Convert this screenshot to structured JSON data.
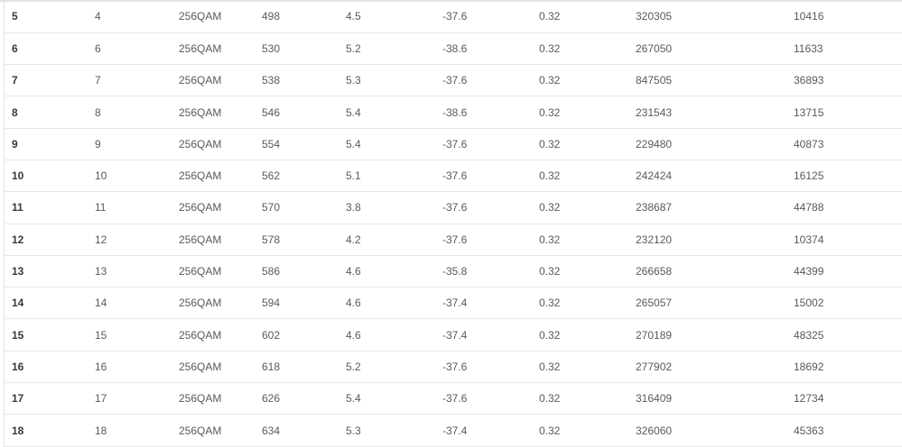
{
  "table": {
    "rows": [
      [
        "5",
        "4",
        "256QAM",
        "498",
        "4.5",
        "-37.6",
        "0.32",
        "320305",
        "10416"
      ],
      [
        "6",
        "6",
        "256QAM",
        "530",
        "5.2",
        "-38.6",
        "0.32",
        "267050",
        "11633"
      ],
      [
        "7",
        "7",
        "256QAM",
        "538",
        "5.3",
        "-37.6",
        "0.32",
        "847505",
        "36893"
      ],
      [
        "8",
        "8",
        "256QAM",
        "546",
        "5.4",
        "-38.6",
        "0.32",
        "231543",
        "13715"
      ],
      [
        "9",
        "9",
        "256QAM",
        "554",
        "5.4",
        "-37.6",
        "0.32",
        "229480",
        "40873"
      ],
      [
        "10",
        "10",
        "256QAM",
        "562",
        "5.1",
        "-37.6",
        "0.32",
        "242424",
        "16125"
      ],
      [
        "11",
        "11",
        "256QAM",
        "570",
        "3.8",
        "-37.6",
        "0.32",
        "238687",
        "44788"
      ],
      [
        "12",
        "12",
        "256QAM",
        "578",
        "4.2",
        "-37.6",
        "0.32",
        "232120",
        "10374"
      ],
      [
        "13",
        "13",
        "256QAM",
        "586",
        "4.6",
        "-35.8",
        "0.32",
        "266658",
        "44399"
      ],
      [
        "14",
        "14",
        "256QAM",
        "594",
        "4.6",
        "-37.4",
        "0.32",
        "265057",
        "15002"
      ],
      [
        "15",
        "15",
        "256QAM",
        "602",
        "4.6",
        "-37.4",
        "0.32",
        "270189",
        "48325"
      ],
      [
        "16",
        "16",
        "256QAM",
        "618",
        "5.2",
        "-37.6",
        "0.32",
        "277902",
        "18692"
      ],
      [
        "17",
        "17",
        "256QAM",
        "626",
        "5.4",
        "-37.6",
        "0.32",
        "316409",
        "12734"
      ],
      [
        "18",
        "18",
        "256QAM",
        "634",
        "5.3",
        "-37.4",
        "0.32",
        "326060",
        "45363"
      ]
    ]
  }
}
